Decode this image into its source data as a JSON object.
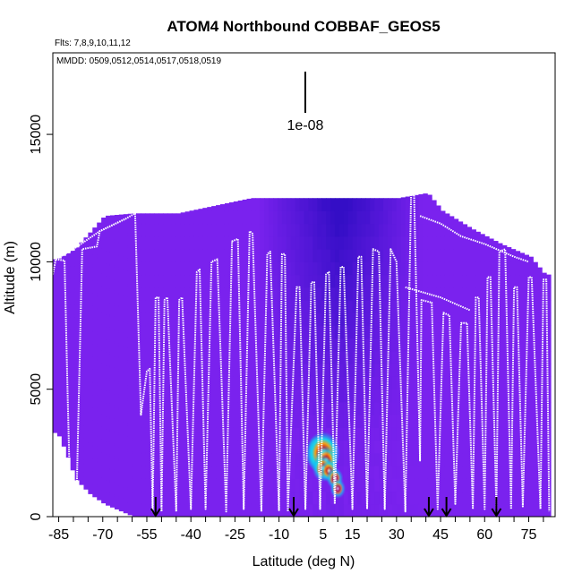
{
  "chart_data": {
    "type": "heatmap",
    "title": "ATOM4 Northbound COBBAF_GEOS5",
    "subtitle_flights": "Flts: 7,8,9,10,11,12",
    "subtitle_dates": "MMDD: 0509,0512,0514,0517,0518,0519",
    "xlabel": "Latitude (deg N)",
    "ylabel": "Altitude (m)",
    "xlim": [
      -87,
      84
    ],
    "ylim": [
      0,
      18200
    ],
    "x_ticks": [
      -85,
      -70,
      -55,
      -40,
      -25,
      -10,
      5,
      15,
      30,
      45,
      60,
      75
    ],
    "y_ticks": [
      0,
      5000,
      10000,
      15000
    ],
    "scale_label": "1e-08",
    "colors": {
      "background_field": "#7a22ee",
      "dark_field": "#3b12cc",
      "track": "#ffffff",
      "plume_core": "#d21a1a",
      "plume_edge": "#15a6ee"
    },
    "column_tops": [
      {
        "lat": -86,
        "top": 10100
      },
      {
        "lat": -80,
        "top": 10500
      },
      {
        "lat": -70,
        "top": 11800
      },
      {
        "lat": -60,
        "top": 11900
      },
      {
        "lat": -45,
        "top": 11900
      },
      {
        "lat": -20,
        "top": 12500
      },
      {
        "lat": 30,
        "top": 12500
      },
      {
        "lat": 40,
        "top": 12700
      },
      {
        "lat": 45,
        "top": 12000
      },
      {
        "lat": 55,
        "top": 11300
      },
      {
        "lat": 65,
        "top": 10700
      },
      {
        "lat": 75,
        "top": 10200
      },
      {
        "lat": 80,
        "top": 9500
      }
    ],
    "low_field_bottom": [
      {
        "lat": -86,
        "bottom": 3300
      },
      {
        "lat": -83,
        "bottom": 2500
      },
      {
        "lat": -80,
        "bottom": 1500
      },
      {
        "lat": -75,
        "bottom": 900
      },
      {
        "lat": -70,
        "bottom": 500
      },
      {
        "lat": -60,
        "bottom": 0
      }
    ],
    "plume": [
      {
        "lat": 3,
        "alt": 2700,
        "value": 0.35
      },
      {
        "lat": 4,
        "alt": 2400,
        "value": 0.7
      },
      {
        "lat": 5,
        "alt": 2500,
        "value": 1.0
      },
      {
        "lat": 6,
        "alt": 2200,
        "value": 0.55
      },
      {
        "lat": 5,
        "alt": 1900,
        "value": 0.45
      },
      {
        "lat": 7,
        "alt": 1800,
        "value": 0.3
      },
      {
        "lat": 9,
        "alt": 1500,
        "value": 0.25
      },
      {
        "lat": 10,
        "alt": 1100,
        "value": 0.2
      }
    ],
    "flight_track": [
      [
        -87,
        9500
      ],
      [
        -86,
        10100
      ],
      [
        -83,
        10050
      ],
      [
        -82,
        5000
      ],
      [
        -81,
        300
      ],
      [
        -79,
        300
      ],
      [
        -77,
        10500
      ],
      [
        -72,
        10600
      ],
      [
        -71,
        11200
      ],
      [
        -62,
        11700
      ],
      [
        -59,
        11900
      ],
      [
        -57,
        4000
      ],
      [
        -55,
        5700
      ],
      [
        -54,
        5800
      ],
      [
        -53,
        200
      ],
      [
        -52,
        8600
      ],
      [
        -51,
        8600
      ],
      [
        -50,
        200
      ],
      [
        -49,
        8500
      ],
      [
        -48,
        8600
      ],
      [
        -45,
        200
      ],
      [
        -44,
        8500
      ],
      [
        -43,
        8600
      ],
      [
        -40,
        300
      ],
      [
        -38,
        9600
      ],
      [
        -37,
        9700
      ],
      [
        -35,
        300
      ],
      [
        -33,
        10000
      ],
      [
        -31,
        10100
      ],
      [
        -28,
        200
      ],
      [
        -26,
        10800
      ],
      [
        -24,
        10900
      ],
      [
        -22,
        300
      ],
      [
        -20,
        11200
      ],
      [
        -19,
        11100
      ],
      [
        -16,
        200
      ],
      [
        -14,
        10300
      ],
      [
        -13,
        10400
      ],
      [
        -10,
        250
      ],
      [
        -9,
        10300
      ],
      [
        -8,
        10300
      ],
      [
        -7,
        200
      ],
      [
        -4,
        9000
      ],
      [
        -3,
        9000
      ],
      [
        -1,
        300
      ],
      [
        1,
        9200
      ],
      [
        2,
        9200
      ],
      [
        4,
        300
      ],
      [
        6,
        9500
      ],
      [
        7,
        9600
      ],
      [
        9,
        500
      ],
      [
        11,
        9800
      ],
      [
        12,
        9800
      ],
      [
        15,
        300
      ],
      [
        17,
        10200
      ],
      [
        18,
        10200
      ],
      [
        20,
        300
      ],
      [
        22,
        10500
      ],
      [
        24,
        10400
      ],
      [
        26,
        300
      ],
      [
        28,
        10500
      ],
      [
        30,
        10000
      ],
      [
        33,
        200
      ],
      [
        35,
        12800
      ],
      [
        36,
        12600
      ],
      [
        38,
        2200
      ],
      [
        38.5,
        8500
      ],
      [
        42,
        8400
      ],
      [
        44,
        300
      ],
      [
        46,
        8000
      ],
      [
        48,
        7900
      ],
      [
        50,
        500
      ],
      [
        52,
        7600
      ],
      [
        54,
        7600
      ],
      [
        56,
        300
      ],
      [
        57,
        8600
      ],
      [
        58,
        8600
      ],
      [
        60,
        300
      ],
      [
        61,
        9400
      ],
      [
        62,
        9400
      ],
      [
        64,
        300
      ],
      [
        65,
        10400
      ],
      [
        67,
        10500
      ],
      [
        69,
        300
      ],
      [
        70,
        9000
      ],
      [
        71,
        9000
      ],
      [
        73,
        400
      ],
      [
        75,
        9400
      ],
      [
        76,
        9400
      ],
      [
        79,
        300
      ],
      [
        80,
        9300
      ],
      [
        81,
        9300
      ],
      [
        82,
        200
      ]
    ],
    "upper_track_segments": [
      [
        [
          -86,
          10100
        ],
        [
          -80,
          10500
        ],
        [
          -71,
          11200
        ],
        [
          -62,
          11700
        ]
      ],
      [
        [
          38,
          11800
        ],
        [
          45,
          11500
        ],
        [
          52,
          11000
        ],
        [
          60,
          10700
        ],
        [
          70,
          10200
        ],
        [
          75,
          10000
        ]
      ],
      [
        [
          33,
          9000
        ],
        [
          45,
          8600
        ],
        [
          55,
          8100
        ]
      ]
    ],
    "arrows": [
      -52,
      -5,
      41,
      47,
      64
    ]
  }
}
